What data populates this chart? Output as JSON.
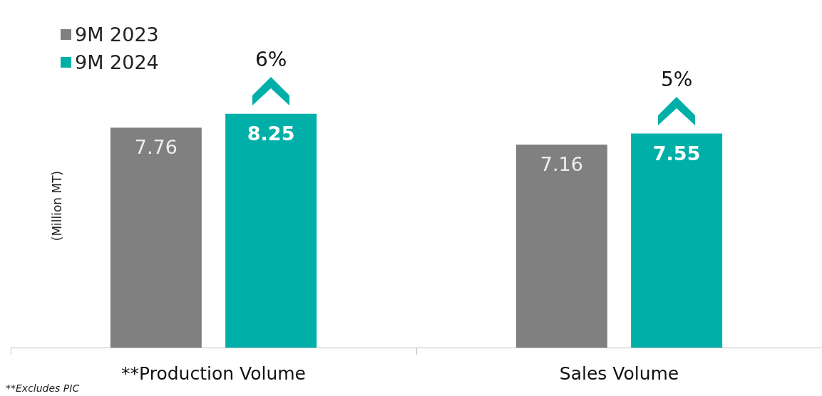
{
  "chart_data": {
    "type": "bar",
    "ylabel": "(Million MT)",
    "categories": [
      "**Production Volume",
      "Sales Volume"
    ],
    "series": [
      {
        "name": "9M 2023",
        "color": "#808080",
        "values": [
          7.76,
          7.16
        ]
      },
      {
        "name": "9M 2024",
        "color": "#00b0a8",
        "values": [
          8.25,
          7.55
        ]
      }
    ],
    "data_labels": true,
    "legend": "top left",
    "grid": false,
    "annotations": [
      "6%",
      "5%",
      "**Excludes PIC"
    ]
  }
}
